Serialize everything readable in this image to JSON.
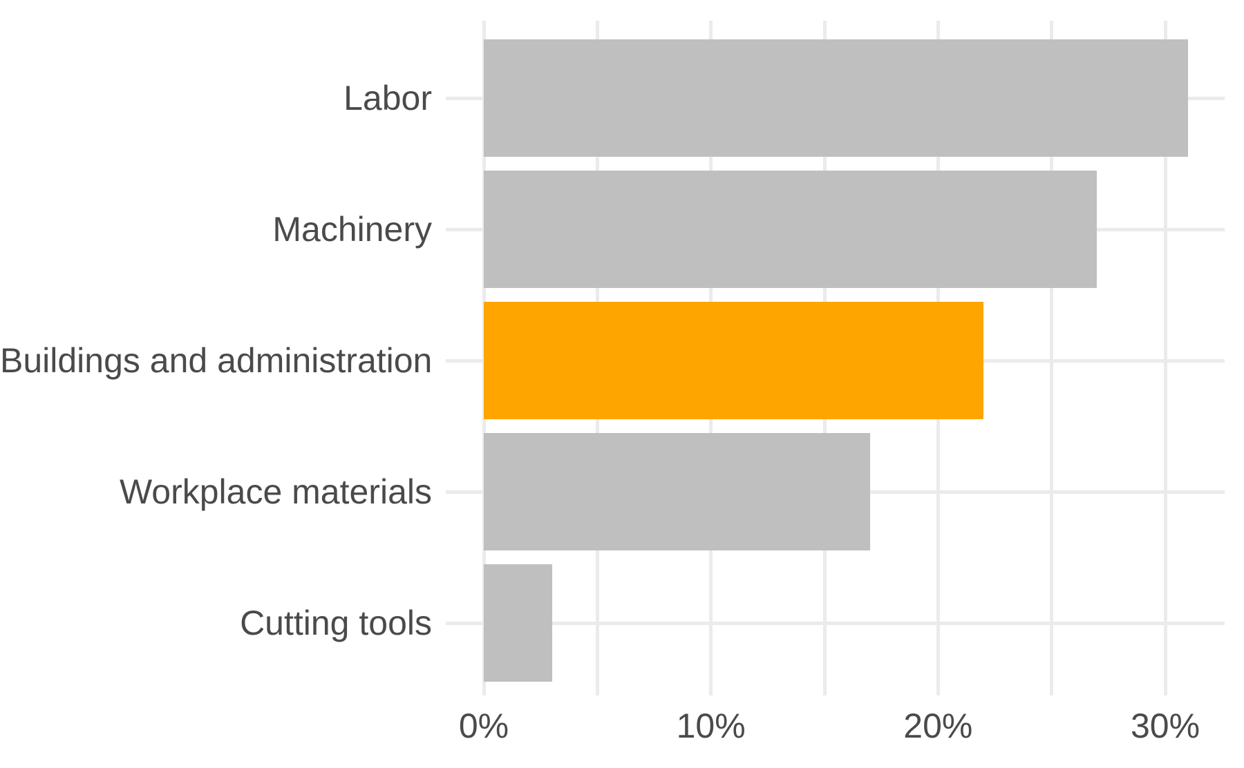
{
  "chart_data": {
    "type": "bar",
    "orientation": "horizontal",
    "title": "",
    "subtitle": "",
    "xlabel": "",
    "ylabel": "",
    "categories": [
      "Labor",
      "Machinery",
      "Buildings and administration",
      "Workplace materials",
      "Cutting tools"
    ],
    "values": [
      31,
      27,
      22,
      17,
      3
    ],
    "value_unit": "%",
    "highlight_index": 2,
    "x_axis": {
      "tick_values": [
        0,
        10,
        20,
        30
      ],
      "tick_labels": [
        "0%",
        "10%",
        "20%",
        "30%"
      ],
      "minor_tick_values": [
        5,
        15,
        25
      ],
      "range": [
        0,
        32.6
      ]
    },
    "grid": {
      "vertical_gridlines": true,
      "horizontal_row_lines": true
    },
    "legend_position": "none",
    "colors": {
      "bar": "#BFBFBF",
      "bar_highlight": "#FFA500",
      "grid": "#EBEBEB",
      "text": "#4A4A4A",
      "background": "#FFFFFF"
    }
  }
}
